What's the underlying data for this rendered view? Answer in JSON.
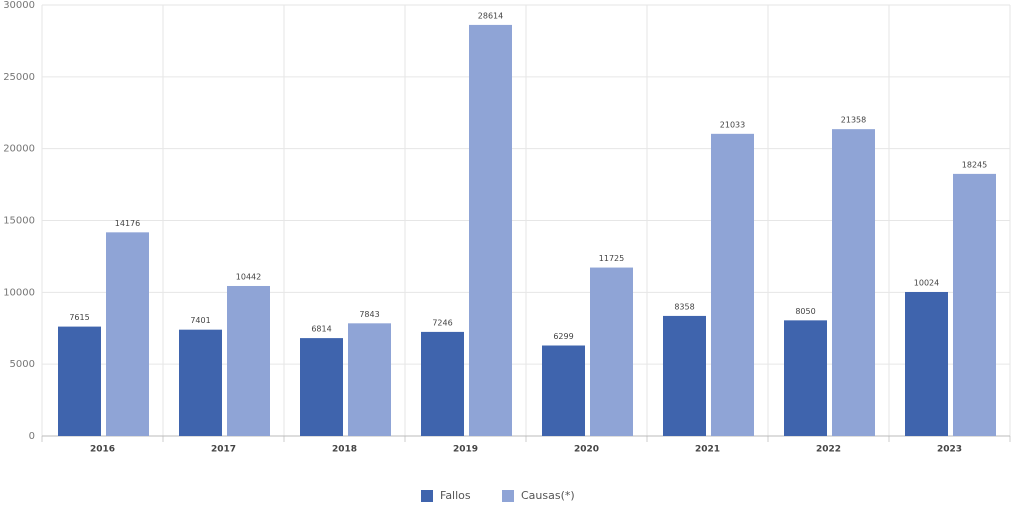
{
  "chart_data": {
    "type": "bar",
    "categories": [
      "2016",
      "2017",
      "2018",
      "2019",
      "2020",
      "2021",
      "2022",
      "2023"
    ],
    "series": [
      {
        "name": "Fallos",
        "color": "#3f64ad",
        "values": [
          7615,
          7401,
          6814,
          7246,
          6299,
          8358,
          8050,
          10024
        ]
      },
      {
        "name": "Causas(*)",
        "color": "#8fa4d6",
        "values": [
          14176,
          10442,
          7843,
          28614,
          11725,
          21033,
          21358,
          18245
        ]
      }
    ],
    "ylim": [
      0,
      30000
    ],
    "yticks": [
      0,
      5000,
      10000,
      15000,
      20000,
      25000,
      30000
    ],
    "grid": true
  }
}
